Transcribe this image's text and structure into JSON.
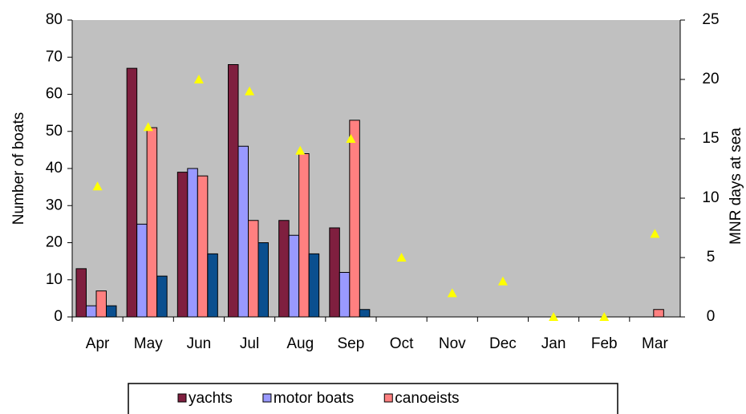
{
  "chart_data": {
    "type": "bar",
    "y_label": "Number of boats",
    "y2_label": "MNR days at sea",
    "categories": [
      "Apr",
      "May",
      "Jun",
      "Jul",
      "Aug",
      "Sep",
      "Oct",
      "Nov",
      "Dec",
      "Jan",
      "Feb",
      "Mar"
    ],
    "series": [
      {
        "name": "yachts",
        "color": "#7f1f3f",
        "values": [
          13,
          67,
          39,
          68,
          26,
          24,
          0,
          0,
          0,
          0,
          0,
          0
        ]
      },
      {
        "name": "motor boats",
        "color": "#9999ff",
        "values": [
          3,
          25,
          40,
          46,
          22,
          12,
          0,
          0,
          0,
          0,
          0,
          0
        ]
      },
      {
        "name": "canoeists",
        "color": "#ff8080",
        "values": [
          7,
          51,
          38,
          26,
          44,
          53,
          0,
          0,
          0,
          0,
          0,
          2
        ]
      },
      {
        "color": "#0a4f8f",
        "values": [
          3,
          11,
          17,
          20,
          17,
          2,
          0,
          0,
          0,
          0,
          0,
          0
        ]
      },
      {
        "color": "#ffff00",
        "axis": "y2",
        "marker": "triangle",
        "values": [
          11,
          16,
          20,
          19,
          14,
          15,
          5,
          2,
          3,
          0,
          0,
          7
        ]
      }
    ],
    "ylim": [
      0,
      80
    ],
    "yticks": [
      0,
      10,
      20,
      30,
      40,
      50,
      60,
      70,
      80
    ],
    "y2lim": [
      0,
      25
    ],
    "y2ticks": [
      0,
      5,
      10,
      15,
      20,
      25
    ],
    "background": "#c0c0c0"
  }
}
